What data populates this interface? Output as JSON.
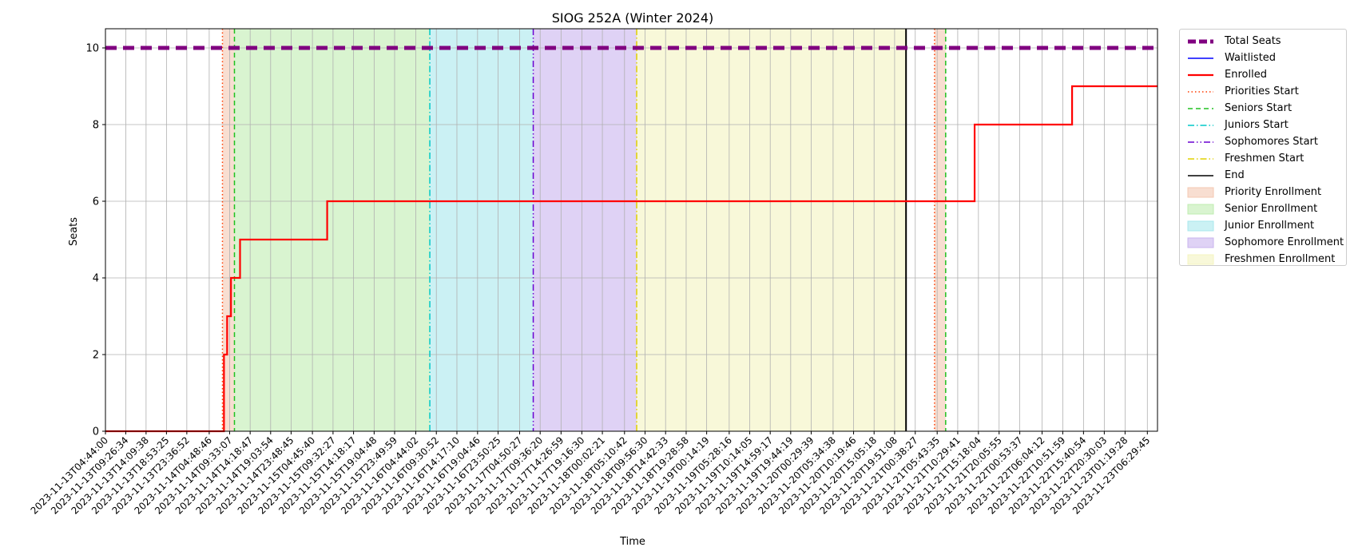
{
  "chart_data": {
    "type": "line",
    "title": "SIOG 252A (Winter 2024)",
    "xlabel": "Time",
    "ylabel": "Seats",
    "ylim": [
      0,
      10.5
    ],
    "yticks": [
      0,
      2,
      4,
      6,
      8,
      10
    ],
    "xlim": [
      "2023-11-13T04:44:00",
      "2023-11-23T08:51:00"
    ],
    "grid": true,
    "legend_position": "outside-right",
    "x_tick_labels": [
      "2023-11-13T04:44:00",
      "2023-11-13T09:26:34",
      "2023-11-13T14:09:38",
      "2023-11-13T18:53:25",
      "2023-11-13T23:36:52",
      "2023-11-14T04:48:46",
      "2023-11-14T09:33:07",
      "2023-11-14T14:18:47",
      "2023-11-14T19:03:54",
      "2023-11-14T23:48:45",
      "2023-11-15T04:45:40",
      "2023-11-15T09:32:27",
      "2023-11-15T14:18:17",
      "2023-11-15T19:04:48",
      "2023-11-15T23:49:59",
      "2023-11-16T04:44:02",
      "2023-11-16T09:30:52",
      "2023-11-16T14:17:10",
      "2023-11-16T19:04:46",
      "2023-11-16T23:50:25",
      "2023-11-17T04:50:27",
      "2023-11-17T09:36:20",
      "2023-11-17T14:26:59",
      "2023-11-17T19:16:30",
      "2023-11-18T00:02:21",
      "2023-11-18T05:10:42",
      "2023-11-18T09:56:30",
      "2023-11-18T14:42:33",
      "2023-11-18T19:28:58",
      "2023-11-19T00:14:19",
      "2023-11-19T05:28:16",
      "2023-11-19T10:14:05",
      "2023-11-19T14:59:17",
      "2023-11-19T19:44:19",
      "2023-11-20T00:29:39",
      "2023-11-20T05:34:38",
      "2023-11-20T10:19:46",
      "2023-11-20T15:05:18",
      "2023-11-20T19:51:08",
      "2023-11-21T00:38:27",
      "2023-11-21T05:43:35",
      "2023-11-21T10:29:41",
      "2023-11-21T15:18:04",
      "2023-11-21T20:05:55",
      "2023-11-22T00:53:37",
      "2023-11-22T06:04:12",
      "2023-11-22T10:51:59",
      "2023-11-22T15:40:54",
      "2023-11-22T20:30:03",
      "2023-11-23T01:19:28",
      "2023-11-23T06:29:45"
    ],
    "series": [
      {
        "name": "Total Seats",
        "color": "#800080",
        "style": "dashed-thick",
        "x": [
          "2023-11-13T04:44:00",
          "2023-11-23T08:51:00"
        ],
        "y": [
          10,
          10
        ]
      },
      {
        "name": "Waitlisted",
        "color": "#0000ff",
        "style": "solid",
        "x": [],
        "y": []
      },
      {
        "name": "Enrolled",
        "color": "#ff0000",
        "style": "step",
        "x": [
          "2023-11-13T04:44:00",
          "2023-11-14T08:14:00",
          "2023-11-14T08:58:00",
          "2023-11-14T09:52:00",
          "2023-11-14T11:58:00",
          "2023-11-14T14:25:00",
          "2023-11-15T08:11:00",
          "2023-11-21T14:25:00",
          "2023-11-22T13:02:00",
          "2023-11-23T08:51:00"
        ],
        "y": [
          0,
          2,
          3,
          4,
          5,
          5,
          6,
          8,
          9,
          9
        ]
      }
    ],
    "vlines": [
      {
        "name": "Priorities Start",
        "x": "2023-11-14T07:53:00",
        "color": "#ff3c00",
        "style": "dotted"
      },
      {
        "name": "Seniors Start",
        "x": "2023-11-14T10:40:00",
        "color": "#20c020",
        "style": "dashed"
      },
      {
        "name": "Juniors Start",
        "x": "2023-11-16T08:00:00",
        "color": "#00c8c8",
        "style": "dashdot"
      },
      {
        "name": "Sophomores Start",
        "x": "2023-11-17T08:00:00",
        "color": "#6a00d0",
        "style": "dashdotdot"
      },
      {
        "name": "Freshmen Start",
        "x": "2023-11-18T08:00:00",
        "color": "#e0d000",
        "style": "dashdot"
      },
      {
        "name": "End",
        "x": "2023-11-20T22:30:00",
        "color": "#000000",
        "style": "solid"
      },
      {
        "name": "Priorities Start",
        "x": "2023-11-21T05:07:00",
        "color": "#ff3c00",
        "style": "dotted"
      },
      {
        "name": "Seniors Start",
        "x": "2023-11-21T07:42:00",
        "color": "#20c020",
        "style": "dashed"
      }
    ],
    "spans": [
      {
        "name": "Priority Enrollment",
        "from": "2023-11-14T07:53:00",
        "to": "2023-11-14T10:40:00",
        "color": "#f4c8b2"
      },
      {
        "name": "Senior Enrollment",
        "from": "2023-11-14T10:40:00",
        "to": "2023-11-16T08:00:00",
        "color": "#bfecb0"
      },
      {
        "name": "Junior Enrollment",
        "from": "2023-11-16T08:00:00",
        "to": "2023-11-17T08:00:00",
        "color": "#a8e8ec"
      },
      {
        "name": "Sophomore Enrollment",
        "from": "2023-11-17T08:00:00",
        "to": "2023-11-18T08:00:00",
        "color": "#cab4ee"
      },
      {
        "name": "Freshmen Enrollment",
        "from": "2023-11-18T08:00:00",
        "to": "2023-11-20T22:30:00",
        "color": "#f4f4c0"
      },
      {
        "name": "Priority Enrollment",
        "from": "2023-11-21T05:07:00",
        "to": "2023-11-21T07:42:00",
        "color": "#f4c8b2"
      }
    ],
    "legend": [
      {
        "label": "Total Seats",
        "kind": "line",
        "color": "#800080",
        "style": "dashed-thick"
      },
      {
        "label": "Waitlisted",
        "kind": "line",
        "color": "#0000ff",
        "style": "solid"
      },
      {
        "label": "Enrolled",
        "kind": "line",
        "color": "#ff0000",
        "style": "solid-thick"
      },
      {
        "label": "Priorities Start",
        "kind": "line",
        "color": "#ff3c00",
        "style": "dotted"
      },
      {
        "label": "Seniors Start",
        "kind": "line",
        "color": "#20c020",
        "style": "dashed"
      },
      {
        "label": "Juniors Start",
        "kind": "line",
        "color": "#00c8c8",
        "style": "dashdot"
      },
      {
        "label": "Sophomores Start",
        "kind": "line",
        "color": "#6a00d0",
        "style": "dashdotdot"
      },
      {
        "label": "Freshmen Start",
        "kind": "line",
        "color": "#e0d000",
        "style": "dashdot"
      },
      {
        "label": "End",
        "kind": "line",
        "color": "#000000",
        "style": "solid"
      },
      {
        "label": "Priority Enrollment",
        "kind": "patch",
        "color": "#f4c8b2"
      },
      {
        "label": "Senior Enrollment",
        "kind": "patch",
        "color": "#bfecb0"
      },
      {
        "label": "Junior Enrollment",
        "kind": "patch",
        "color": "#a8e8ec"
      },
      {
        "label": "Sophomore Enrollment",
        "kind": "patch",
        "color": "#cab4ee"
      },
      {
        "label": "Freshmen Enrollment",
        "kind": "patch",
        "color": "#f4f4c0"
      }
    ]
  }
}
